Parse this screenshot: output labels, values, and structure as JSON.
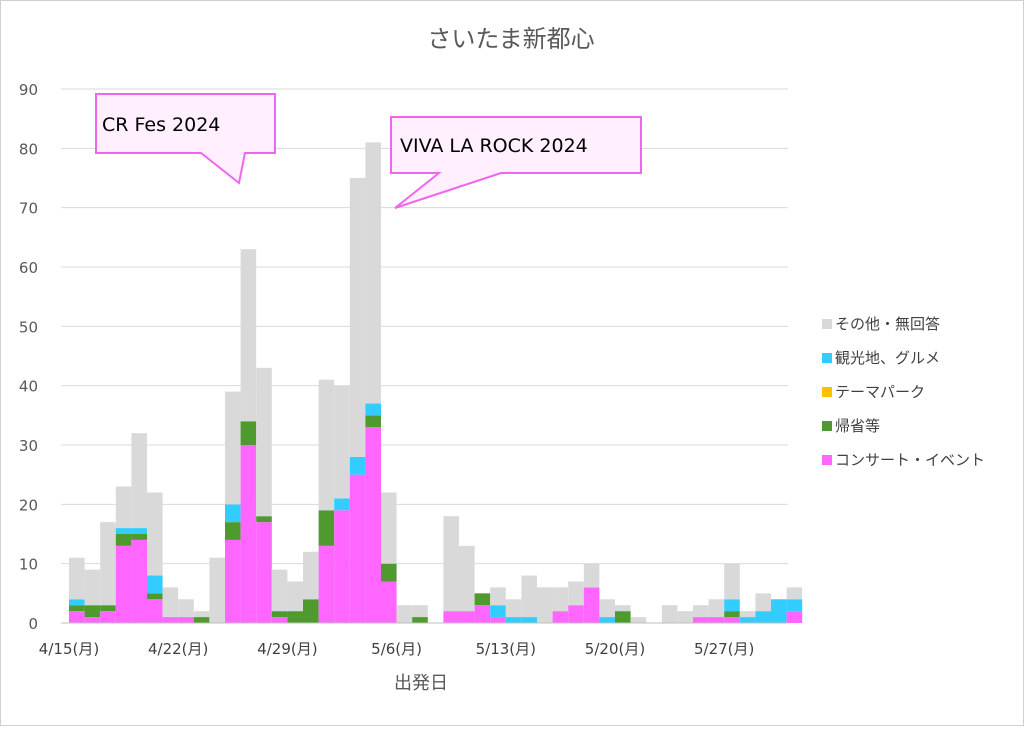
{
  "chart_data": {
    "type": "bar",
    "stacked": true,
    "title": "さいたま新都心",
    "xlabel": "出発日",
    "ylabel": "",
    "ylim": [
      0,
      90
    ],
    "yticks": [
      0,
      10,
      20,
      30,
      40,
      50,
      60,
      70,
      80,
      90
    ],
    "grid": true,
    "legend_position": "right",
    "start_date": "2024-04-15",
    "x_tick_labels": [
      "4/15(月)",
      "4/22(月)",
      "4/29(月)",
      "5/6(月)",
      "5/13(月)",
      "5/20(月)",
      "5/27(月)"
    ],
    "categories": [
      "4/15",
      "4/16",
      "4/17",
      "4/18",
      "4/19",
      "4/20",
      "4/21",
      "4/22",
      "4/23",
      "4/24",
      "4/25",
      "4/26",
      "4/27",
      "4/28",
      "4/29",
      "4/30",
      "5/1",
      "5/2",
      "5/3",
      "5/4",
      "5/5",
      "5/6",
      "5/7",
      "5/8",
      "5/9",
      "5/10",
      "5/11",
      "5/12",
      "5/13",
      "5/14",
      "5/15",
      "5/16",
      "5/17",
      "5/18",
      "5/19",
      "5/20",
      "5/21",
      "5/22",
      "5/23",
      "5/24",
      "5/25",
      "5/26",
      "5/27",
      "5/28",
      "5/29",
      "5/30",
      "5/31"
    ],
    "series": [
      {
        "name": "コンサート・イベント",
        "color": "#FF66FF",
        "values": [
          2,
          1,
          2,
          13,
          14,
          4,
          1,
          1,
          0,
          0,
          14,
          30,
          17,
          1,
          0,
          0,
          13,
          19,
          25,
          33,
          7,
          0,
          0,
          0,
          2,
          2,
          3,
          1,
          0,
          0,
          0,
          2,
          3,
          6,
          0,
          0,
          0,
          0,
          0,
          0,
          1,
          1,
          1,
          0,
          0,
          0,
          2
        ]
      },
      {
        "name": "帰省等",
        "color": "#4E9A2E",
        "values": [
          1,
          2,
          1,
          2,
          1,
          1,
          0,
          0,
          1,
          0,
          3,
          4,
          1,
          1,
          2,
          4,
          6,
          0,
          0,
          2,
          3,
          0,
          1,
          0,
          0,
          0,
          2,
          0,
          0,
          0,
          0,
          0,
          0,
          0,
          0,
          2,
          0,
          0,
          0,
          0,
          0,
          0,
          1,
          0,
          0,
          0,
          0
        ]
      },
      {
        "name": "テーマパーク",
        "color": "#FFC000",
        "values": [
          0,
          0,
          0,
          0,
          0,
          0,
          0,
          0,
          0,
          0,
          0,
          0,
          0,
          0,
          0,
          0,
          0,
          0,
          0,
          0,
          0,
          0,
          0,
          0,
          0,
          0,
          0,
          0,
          0,
          0,
          0,
          0,
          0,
          0,
          0,
          0,
          0,
          0,
          0,
          0,
          0,
          0,
          0,
          0,
          0,
          0,
          0
        ]
      },
      {
        "name": "観光地、グルメ",
        "color": "#33CCFF",
        "values": [
          1,
          0,
          0,
          1,
          1,
          3,
          0,
          0,
          0,
          0,
          3,
          0,
          0,
          0,
          0,
          0,
          0,
          2,
          3,
          2,
          0,
          0,
          0,
          0,
          0,
          0,
          0,
          2,
          1,
          1,
          0,
          0,
          0,
          0,
          1,
          0,
          0,
          0,
          0,
          0,
          0,
          0,
          2,
          1,
          2,
          4,
          2
        ]
      },
      {
        "name": "その他・無回答",
        "color": "#D9D9D9",
        "values": [
          7,
          6,
          14,
          7,
          16,
          14,
          5,
          3,
          1,
          11,
          19,
          29,
          25,
          7,
          5,
          8,
          22,
          19,
          47,
          44,
          12,
          3,
          2,
          0,
          16,
          11,
          0,
          3,
          3,
          7,
          6,
          4,
          4,
          4,
          3,
          1,
          1,
          0,
          3,
          2,
          2,
          3,
          6,
          1,
          3,
          0,
          2
        ]
      }
    ],
    "annotations": [
      {
        "text": "CR Fes 2024"
      },
      {
        "text": "VIVA LA ROCK 2024"
      }
    ]
  }
}
